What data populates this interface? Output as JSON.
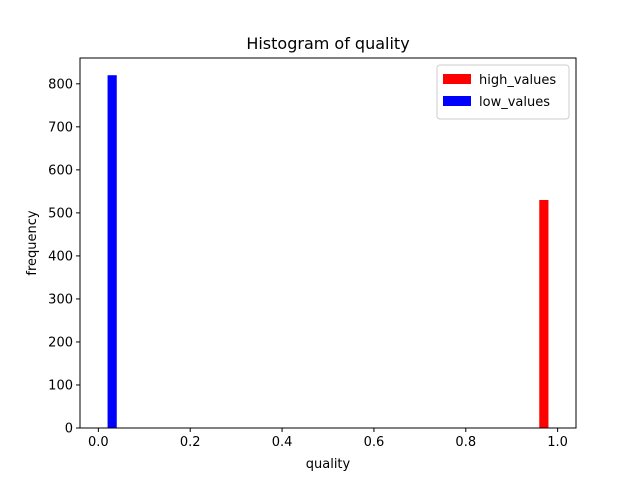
{
  "chart_data": {
    "type": "bar",
    "title": "Histogram of quality",
    "xlabel": "quality",
    "ylabel": "frequency",
    "xlim": [
      -0.04,
      1.04
    ],
    "ylim": [
      0,
      860
    ],
    "x_ticks": [
      0.0,
      0.2,
      0.4,
      0.6,
      0.8,
      1.0
    ],
    "x_tick_labels": [
      "0.0",
      "0.2",
      "0.4",
      "0.6",
      "0.8",
      "1.0"
    ],
    "y_ticks": [
      0,
      100,
      200,
      300,
      400,
      500,
      600,
      700,
      800
    ],
    "y_tick_labels": [
      "0",
      "100",
      "200",
      "300",
      "400",
      "500",
      "600",
      "700",
      "800"
    ],
    "bin_width": 0.02,
    "series": [
      {
        "name": "high_values",
        "color": "#ff0000",
        "bins": [
          {
            "x0": 0.96,
            "x1": 0.98,
            "value": 530
          }
        ]
      },
      {
        "name": "low_values",
        "color": "#0000ff",
        "bins": [
          {
            "x0": 0.02,
            "x1": 0.04,
            "value": 820
          }
        ]
      }
    ],
    "legend": {
      "position": "top-right"
    },
    "grid": false
  }
}
